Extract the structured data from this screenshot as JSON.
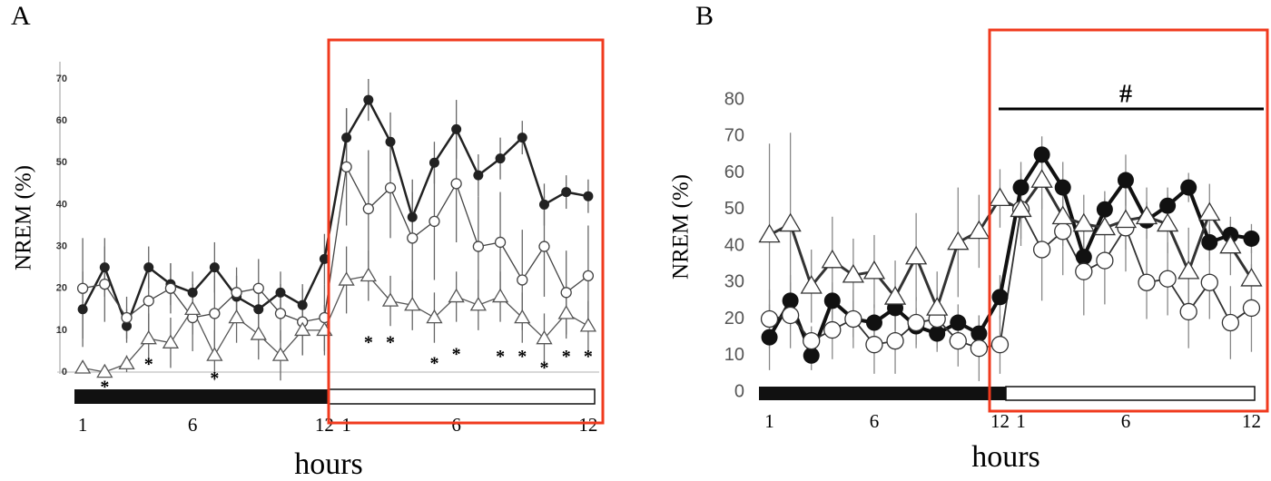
{
  "chart_data": [
    {
      "type": "line",
      "panel": "A",
      "ylabel": "NREM (%)",
      "xlabel": "hours",
      "x": [
        1,
        2,
        3,
        4,
        5,
        6,
        7,
        8,
        9,
        10,
        11,
        12,
        13,
        14,
        15,
        16,
        17,
        18,
        19,
        20,
        21,
        22,
        23,
        24
      ],
      "xlim": [
        0.5,
        24.5
      ],
      "xticks": [
        1,
        6,
        12,
        {
          "value": 13,
          "label": "1"
        },
        {
          "value": 18,
          "label": "6"
        },
        {
          "value": 24,
          "label": "12"
        }
      ],
      "ylim": [
        0,
        70
      ],
      "yticks": [
        0,
        10,
        20,
        30,
        40,
        50,
        60,
        70
      ],
      "series": [
        {
          "marker": "filled-circle",
          "color": "#222222",
          "values": [
            15,
            25,
            11,
            25,
            21,
            19,
            25,
            18,
            15,
            19,
            16,
            27,
            56,
            65,
            55,
            37,
            50,
            58,
            47,
            51,
            56,
            40,
            43,
            42
          ],
          "errors": [
            9,
            7,
            4,
            5,
            5,
            5,
            6,
            5,
            5,
            5,
            5,
            6,
            7,
            5,
            7,
            6,
            5,
            7,
            5,
            5,
            4,
            5,
            4,
            4
          ]
        },
        {
          "marker": "open-circle",
          "color": "#444444",
          "values": [
            20,
            21,
            13,
            17,
            20,
            13,
            14,
            19,
            20,
            14,
            12,
            13,
            49,
            39,
            44,
            32,
            36,
            45,
            30,
            31,
            22,
            30,
            19,
            23
          ],
          "errors": [
            12,
            9,
            5,
            8,
            6,
            8,
            9,
            6,
            7,
            7,
            8,
            8,
            14,
            14,
            12,
            14,
            14,
            14,
            12,
            12,
            12,
            12,
            10,
            12
          ]
        },
        {
          "marker": "triangle",
          "color": "#555555",
          "values": [
            1,
            0,
            2,
            8,
            7,
            15,
            4,
            13,
            9,
            4,
            10,
            10,
            22,
            23,
            17,
            16,
            13,
            18,
            16,
            18,
            13,
            8,
            14,
            11
          ],
          "errors": [
            1,
            1,
            2,
            6,
            6,
            6,
            6,
            6,
            6,
            6,
            6,
            6,
            8,
            6,
            6,
            6,
            6,
            6,
            6,
            6,
            6,
            6,
            6,
            6
          ]
        }
      ],
      "annotations": [
        {
          "text": "*",
          "x": 2,
          "y": -3
        },
        {
          "text": "*",
          "x": 4,
          "y": 2.4
        },
        {
          "text": "*",
          "x": 7,
          "y": -1
        },
        {
          "text": "*",
          "x": 14,
          "y": 7.6
        },
        {
          "text": "*",
          "x": 15,
          "y": 7.6
        },
        {
          "text": "*",
          "x": 17,
          "y": 2.6
        },
        {
          "text": "*",
          "x": 18,
          "y": 4.8
        },
        {
          "text": "*",
          "x": 20,
          "y": 4.3
        },
        {
          "text": "*",
          "x": 21,
          "y": 4.3
        },
        {
          "text": "*",
          "x": 22,
          "y": 1.5
        },
        {
          "text": "*",
          "x": 23,
          "y": 4.3
        },
        {
          "text": "*",
          "x": 24,
          "y": 4.3
        }
      ]
    },
    {
      "type": "line",
      "panel": "B",
      "ylabel": "NREM (%)",
      "xlabel": "hours",
      "x": [
        1,
        2,
        3,
        4,
        5,
        6,
        7,
        8,
        9,
        10,
        11,
        12,
        13,
        14,
        15,
        16,
        17,
        18,
        19,
        20,
        21,
        22,
        23,
        24
      ],
      "xlim": [
        0.5,
        24.5
      ],
      "xticks": [
        1,
        6,
        12,
        {
          "value": 13,
          "label": "1"
        },
        {
          "value": 18,
          "label": "6"
        },
        {
          "value": 24,
          "label": "12"
        }
      ],
      "ylim": [
        0,
        80
      ],
      "yticks": [
        0,
        10,
        20,
        30,
        40,
        50,
        60,
        70,
        80
      ],
      "series": [
        {
          "marker": "filled-circle",
          "color": "#111111",
          "values": [
            15,
            25,
            10,
            25,
            20,
            19,
            23,
            18,
            16,
            19,
            16,
            26,
            56,
            65,
            56,
            37,
            50,
            58,
            47,
            51,
            56,
            41,
            43,
            42
          ],
          "errors": [
            9,
            7,
            4,
            5,
            5,
            5,
            6,
            5,
            5,
            5,
            5,
            6,
            7,
            5,
            7,
            6,
            5,
            7,
            5,
            5,
            4,
            5,
            4,
            4
          ]
        },
        {
          "marker": "open-circle",
          "color": "#333333",
          "values": [
            20,
            21,
            14,
            17,
            20,
            13,
            14,
            19,
            20,
            14,
            12,
            13,
            50,
            39,
            44,
            33,
            36,
            45,
            30,
            31,
            22,
            30,
            19,
            23
          ],
          "errors": [
            8,
            9,
            4,
            8,
            8,
            8,
            9,
            7,
            8,
            7,
            9,
            8,
            10,
            14,
            12,
            12,
            12,
            12,
            10,
            10,
            10,
            10,
            10,
            12
          ]
        },
        {
          "marker": "triangle",
          "color": "#333333",
          "values": [
            43,
            46,
            29,
            36,
            32,
            33,
            26,
            37,
            23,
            41,
            44,
            53,
            50,
            58,
            48,
            46,
            45,
            47,
            48,
            46,
            33,
            49,
            40,
            31
          ],
          "errors": [
            25,
            25,
            10,
            12,
            10,
            10,
            10,
            12,
            10,
            15,
            10,
            8,
            8,
            8,
            8,
            8,
            8,
            8,
            8,
            8,
            12,
            8,
            8,
            8
          ]
        }
      ],
      "annotations": [
        {
          "text": "#",
          "x": 18,
          "y": 82
        }
      ]
    }
  ]
}
